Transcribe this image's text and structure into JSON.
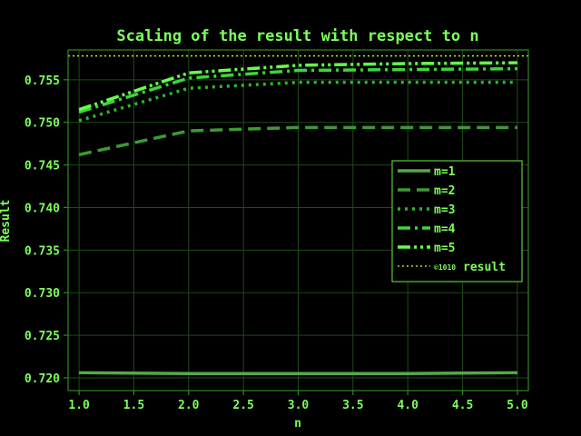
{
  "chart_data": {
    "type": "line",
    "title": "Scaling of the result with respect to n",
    "xlabel": "n",
    "ylabel": "Result",
    "x": [
      1.0,
      2.0,
      3.0,
      4.0,
      5.0
    ],
    "xlim": [
      0.9,
      5.1
    ],
    "ylim": [
      0.7185,
      0.7585
    ],
    "xticks": [
      "1.0",
      "1.5",
      "2.0",
      "2.5",
      "3.0",
      "3.5",
      "4.0",
      "4.5",
      "5.0"
    ],
    "yticks": [
      "0.720",
      "0.725",
      "0.730",
      "0.735",
      "0.740",
      "0.745",
      "0.750",
      "0.755"
    ],
    "grid": true,
    "legend_position": "center-right",
    "series": [
      {
        "name": "m=1",
        "values": [
          0.7206,
          0.7205,
          0.7205,
          0.7205,
          0.7206
        ],
        "color": "#55a84a",
        "dash": "solid"
      },
      {
        "name": "m=2",
        "values": [
          0.7462,
          0.749,
          0.7494,
          0.7494,
          0.7494
        ],
        "color": "#3d9a35",
        "dash": "dashed"
      },
      {
        "name": "m=3",
        "values": [
          0.7502,
          0.754,
          0.7547,
          0.7547,
          0.7547
        ],
        "color": "#2fb52a",
        "dash": "dotted"
      },
      {
        "name": "m=4",
        "values": [
          0.7512,
          0.7552,
          0.7561,
          0.7562,
          0.7563
        ],
        "color": "#3cd63a",
        "dash": "dashdot"
      },
      {
        "name": "m=5",
        "values": [
          0.7515,
          0.7558,
          0.7567,
          0.7569,
          0.757
        ],
        "color": "#63ff4a",
        "dash": "dashdotdot"
      }
    ],
    "reference_line": {
      "name": "result",
      "name_prefix": "©1010",
      "value": 0.7578,
      "color": "#d7ff3a",
      "dash": "dotted"
    }
  }
}
